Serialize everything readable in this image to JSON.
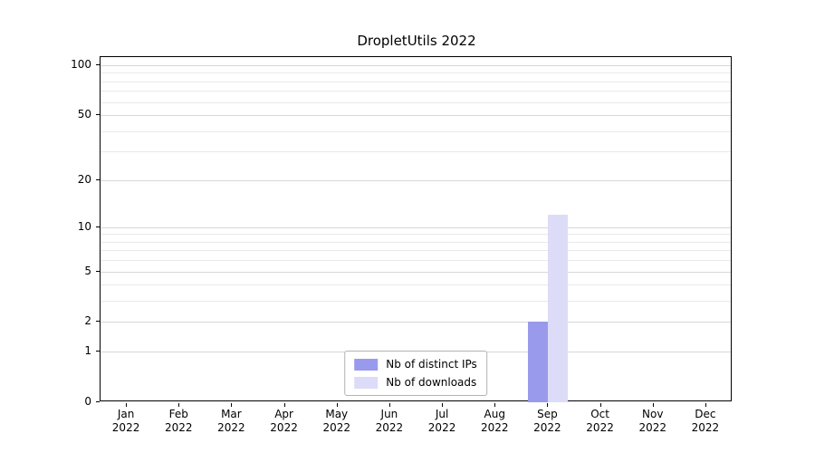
{
  "chart_data": {
    "type": "bar",
    "title": "DropletUtils 2022",
    "categories": [
      "Jan",
      "Feb",
      "Mar",
      "Apr",
      "May",
      "Jun",
      "Jul",
      "Aug",
      "Sep",
      "Oct",
      "Nov",
      "Dec"
    ],
    "year": "2022",
    "series": [
      {
        "name": "Nb of distinct IPs",
        "color": "#9a9aec",
        "values": [
          0,
          0,
          0,
          0,
          0,
          0,
          0,
          0,
          2,
          0,
          0,
          0
        ]
      },
      {
        "name": "Nb of downloads",
        "color": "#dcdcf8",
        "values": [
          0,
          0,
          0,
          0,
          0,
          0,
          0,
          0,
          12,
          0,
          0,
          0
        ]
      }
    ],
    "yticks": [
      0,
      1,
      2,
      5,
      10,
      20,
      50,
      100
    ],
    "minor_yticks": [
      3,
      4,
      6,
      7,
      8,
      9,
      30,
      40,
      60,
      70,
      80,
      90
    ],
    "scale": "log1p",
    "ylim": [
      0,
      112
    ],
    "xlabel": "",
    "ylabel": "",
    "grid": true,
    "legend_position": "lower center",
    "colors": {
      "axis": "#000000",
      "grid_minor": "#e9e9e9",
      "grid_major": "#d7d7d7",
      "background": "#ffffff"
    }
  }
}
